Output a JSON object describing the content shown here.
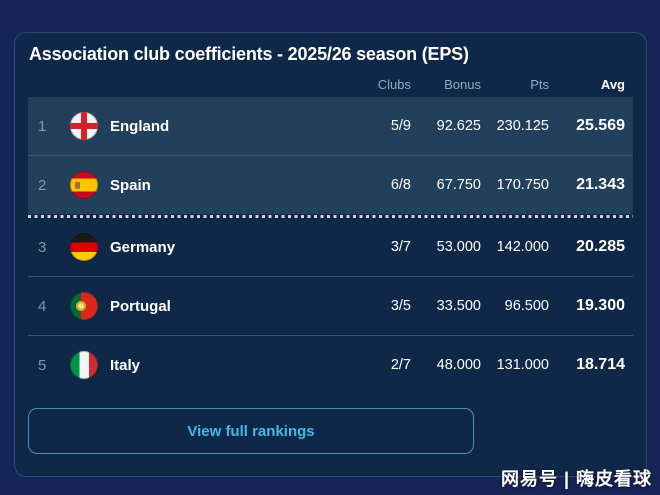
{
  "card": {
    "title": "Association club coefficients - 2025/26 season (EPS)"
  },
  "table": {
    "headers": {
      "clubs": "Clubs",
      "bonus": "Bonus",
      "pts": "Pts",
      "avg": "Avg"
    },
    "cutoff_after_rank": 2,
    "rows": [
      {
        "rank": "1",
        "country": "England",
        "flag": "england-flag",
        "clubs": "5/9",
        "bonus": "92.625",
        "pts": "230.125",
        "avg": "25.569"
      },
      {
        "rank": "2",
        "country": "Spain",
        "flag": "spain-flag",
        "clubs": "6/8",
        "bonus": "67.750",
        "pts": "170.750",
        "avg": "21.343"
      },
      {
        "rank": "3",
        "country": "Germany",
        "flag": "germany-flag",
        "clubs": "3/7",
        "bonus": "53.000",
        "pts": "142.000",
        "avg": "20.285"
      },
      {
        "rank": "4",
        "country": "Portugal",
        "flag": "portugal-flag",
        "clubs": "3/5",
        "bonus": "33.500",
        "pts": "96.500",
        "avg": "19.300"
      },
      {
        "rank": "5",
        "country": "Italy",
        "flag": "italy-flag",
        "clubs": "2/7",
        "bonus": "48.000",
        "pts": "131.000",
        "avg": "18.714"
      }
    ]
  },
  "button": {
    "label": "View full rankings"
  },
  "watermark": {
    "text": "网易号 | 嗨皮看球"
  },
  "colors": {
    "page_bg": "#152557",
    "card_bg": "#0f2848",
    "highlight_row_bg": "#223f5b",
    "header_text": "#95a9bd",
    "button_border": "#3f93bf",
    "button_text": "#41b9ea",
    "dotted_cutoff": "#ccd6e0"
  }
}
